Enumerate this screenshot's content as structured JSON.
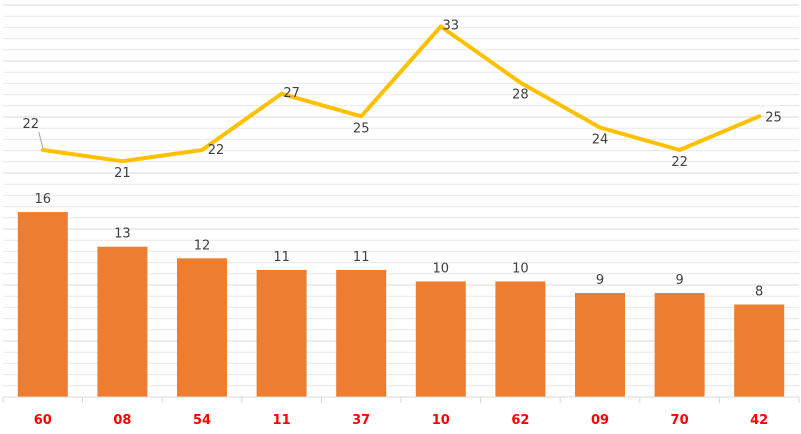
{
  "chart_data": {
    "type": "bar",
    "categories": [
      "60",
      "08",
      "54",
      "11",
      "37",
      "10",
      "62",
      "09",
      "70",
      "42"
    ],
    "series": [
      {
        "type": "bar",
        "values": [
          16,
          13,
          12,
          11,
          11,
          10,
          10,
          9,
          9,
          8
        ],
        "color": "#ed7d31"
      },
      {
        "type": "line",
        "values": [
          22,
          21,
          22,
          27,
          25,
          33,
          28,
          24,
          22,
          25
        ],
        "color": "#ffc000"
      }
    ],
    "bar_ylim": [
      0,
      34
    ],
    "line_ylim": [
      0,
      35
    ],
    "grid": true,
    "legend": "none",
    "category_label_color": "#ff0000",
    "title": "",
    "xlabel": "",
    "ylabel": ""
  }
}
